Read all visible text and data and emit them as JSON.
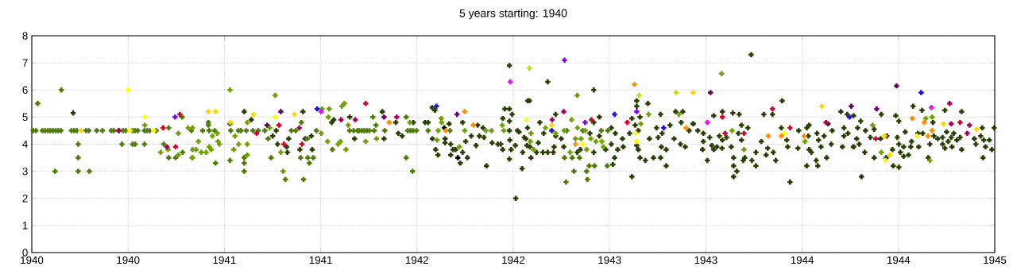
{
  "chart_data": {
    "type": "scatter",
    "title": "5 years starting: 1940",
    "xlim": [
      1940,
      1945
    ],
    "ylim": [
      0,
      8
    ],
    "xticks": [
      1940,
      {
        "value": 1940.5,
        "label": "1940"
      },
      1941,
      {
        "value": 1941.5,
        "label": "1941"
      },
      1942,
      {
        "value": 1942.5,
        "label": "1942"
      },
      1943,
      {
        "value": 1943.5,
        "label": "1943"
      },
      1944,
      {
        "value": 1944.5,
        "label": "1944"
      },
      1945
    ],
    "yticks": [
      0,
      1,
      2,
      3,
      4,
      5,
      6,
      7,
      8
    ],
    "grid": true,
    "marker": "cross",
    "series": [
      {
        "color": "#283c00",
        "x": [
          1940.215,
          1941.103,
          1941.14,
          1941.029,
          1941.408,
          1941.269,
          1941.251,
          1941.276,
          1941.334,
          1941.323,
          1941.327,
          1941.392,
          1941.452,
          1941.456,
          1941.419,
          1941.568,
          1941.557,
          1941.651,
          1941.676,
          1941.82,
          1941.829,
          1941.89,
          1941.903,
          1941.923,
          1941.981,
          1942.042,
          1942.058,
          1942.079,
          1942.093,
          1942.08,
          1942.097,
          1942.109,
          1942.146,
          1942.146,
          1942.167,
          1942.175,
          1942.175,
          1942.187,
          1942.2,
          1942.225,
          1942.237,
          1942.237,
          1942.262,
          1942.253,
          1942.282,
          1942.315,
          1942.324,
          1942.307,
          1942.348,
          1942.343,
          1942.361,
          1942.39,
          1942.42,
          1942.435,
          1942.445,
          1942.446,
          1942.456,
          1942.48,
          1942.48,
          1942.48,
          1942.48,
          1942.482,
          1942.48,
          1942.494,
          1942.489,
          1942.513,
          1942.522,
          1942.546,
          1942.549,
          1942.557,
          1942.571,
          1942.575,
          1942.53,
          1942.511,
          1942.679,
          1942.584,
          1942.574,
          1942.565,
          1942.586,
          1942.592,
          1942.621,
          1942.638,
          1942.63,
          1942.654,
          1942.658,
          1942.679,
          1942.708,
          1942.712,
          1942.72,
          1942.72,
          1942.749,
          1942.762,
          1942.832,
          1942.848,
          1942.898,
          1942.918,
          1942.918,
          1942.947,
          1942.947,
          1942.918,
          1942.98,
          1943.009,
          1943.009,
          1943.017,
          1943.03,
          1943.026,
          1943.042,
          1943.067,
          1943.071,
          1943.104,
          1943.116,
          1943.116,
          1943.133,
          1943.141,
          1943.141,
          1943.158,
          1943.149,
          1943.149,
          1943.141,
          1943.158,
          1943.186,
          1943.199,
          1943.207,
          1943.228,
          1943.244,
          1943.252,
          1943.265,
          1943.265,
          1943.269,
          1943.294,
          1943.273,
          1943.294,
          1943.314,
          1943.335,
          1943.343,
          1943.368,
          1943.372,
          1943.38,
          1943.393,
          1943.413,
          1943.434,
          1943.735,
          1943.896,
          1943.434,
          1943.458,
          1943.487,
          1943.487,
          1943.483,
          1943.508,
          1943.52,
          1943.541,
          1943.531,
          1943.541,
          1943.557,
          1943.57,
          1943.586,
          1943.586,
          1943.584,
          1943.607,
          1943.64,
          1943.632,
          1943.644,
          1943.644,
          1943.644,
          1943.661,
          1943.673,
          1943.669,
          1943.685,
          1943.685,
          1943.702,
          1943.718,
          1943.694,
          1943.739,
          1943.76,
          1943.76,
          1943.788,
          1943.801,
          1943.821,
          1943.846,
          1943.813,
          1943.863,
          1943.85,
          1943.892,
          1943.92,
          1943.925,
          1943.937,
          1943.978,
          1943.982,
          1944.024,
          1944.036,
          1944.024,
          1944.032,
          1944.036,
          1944.048,
          1944.077,
          1944.081,
          1944.073,
          1944.085,
          1944.098,
          1944.114,
          1944.127,
          1944.135,
          1944.151,
          1944.156,
          1944.201,
          1944.209,
          1944.217,
          1944.217,
          1944.234,
          1944.238,
          1944.267,
          1944.267,
          1944.283,
          1944.288,
          1944.304,
          1944.296,
          1944.308,
          1944.266,
          1944.329,
          1944.325,
          1944.354,
          1944.374,
          1944.374,
          1944.407,
          1944.411,
          1944.44,
          1944.436,
          1944.473,
          1944.469,
          1944.486,
          1944.502,
          1944.494,
          1944.502,
          1944.502,
          1944.51,
          1944.527,
          1944.527,
          1944.535,
          1944.552,
          1944.564,
          1944.568,
          1944.576,
          1944.605,
          1944.601,
          1944.622,
          1944.626,
          1944.655,
          1944.663,
          1944.679,
          1944.684,
          1944.704,
          1944.729,
          1944.729,
          1944.741,
          1944.741,
          1944.75,
          1944.758,
          1944.774,
          1944.778,
          1944.787,
          1944.803,
          1944.82,
          1944.828,
          1944.828,
          1944.894,
          1944.902,
          1944.927,
          1944.935,
          1944.939,
          1944.943,
          1944.952,
          1944.972,
          1944.985,
          1944.997
        ],
        "values": [
          5.15,
          5.2,
          4.9,
          4.75,
          5.2,
          4.5,
          4.3,
          4.0,
          4.2,
          3.9,
          3.7,
          3.8,
          4.3,
          3.8,
          4.2,
          4.9,
          4.8,
          5.0,
          4.2,
          5.2,
          4.2,
          4.8,
          4.4,
          4.3,
          4.8,
          4.8,
          4.8,
          5.35,
          5.25,
          4.2,
          3.8,
          3.6,
          4.2,
          4.05,
          4.75,
          4.0,
          3.6,
          3.8,
          3.8,
          3.3,
          4.8,
          3.7,
          3.5,
          4.1,
          4.3,
          4.7,
          4.3,
          3.95,
          4.25,
          4.6,
          3.2,
          4.05,
          4.0,
          4.0,
          3.8,
          4.95,
          5.3,
          6.9,
          5.3,
          4.85,
          4.5,
          4.15,
          3.45,
          5.1,
          3.8,
          2.0,
          4.5,
          3.1,
          3.7,
          4.25,
          3.95,
          5.6,
          4.45,
          3.95,
          6.3,
          5.6,
          4.6,
          4.2,
          3.9,
          3.5,
          3.7,
          4.8,
          4.05,
          3.7,
          4.4,
          3.7,
          3.7,
          3.9,
          5.1,
          4.3,
          4.2,
          3.9,
          3.7,
          3.8,
          4.4,
          6.0,
          4.8,
          5.0,
          4.3,
          3.7,
          3.8,
          4.6,
          4.0,
          3.25,
          4.4,
          3.5,
          3.8,
          4.2,
          3.9,
          4.4,
          2.8,
          4.95,
          4.7,
          5.6,
          5.4,
          5.0,
          4.5,
          3.8,
          3.95,
          3.5,
          3.4,
          5.5,
          4.2,
          3.5,
          4.6,
          4.25,
          5.1,
          3.5,
          3.9,
          3.2,
          4.4,
          3.8,
          4.7,
          4.2,
          5.2,
          4.0,
          4.8,
          5.2,
          3.9,
          4.5,
          4.75,
          7.3,
          5.6,
          4.75,
          4.5,
          4.4,
          4.1,
          3.8,
          3.4,
          4.25,
          5.05,
          3.95,
          3.8,
          3.9,
          4.3,
          5.2,
          4.15,
          3.85,
          4.25,
          5.15,
          3.9,
          3.5,
          3.2,
          2.8,
          3.0,
          5.1,
          4.4,
          4.7,
          4.15,
          3.5,
          4.6,
          3.4,
          3.4,
          3.2,
          3.7,
          4.1,
          5.1,
          3.85,
          5.1,
          3.6,
          3.4,
          3.7,
          4.6,
          4.15,
          3.9,
          2.6,
          3.85,
          4.5,
          4.6,
          4.7,
          3.2,
          4.3,
          3.8,
          3.7,
          4.4,
          3.2,
          3.4,
          4.15,
          3.9,
          4.3,
          3.5,
          4.75,
          4.0,
          4.5,
          5.2,
          3.9,
          4.6,
          4.3,
          5.1,
          4.4,
          5.05,
          3.9,
          4.2,
          4.6,
          4.85,
          4.0,
          2.8,
          3.9,
          4.5,
          3.7,
          4.25,
          4.55,
          3.5,
          4.2,
          5.1,
          4.3,
          3.5,
          3.2,
          3.8,
          5.05,
          4.85,
          4.25,
          3.15,
          4.0,
          3.7,
          3.9,
          3.55,
          4.45,
          3.6,
          3.9,
          4.1,
          5.4,
          3.9,
          4.4,
          5.25,
          4.4,
          3.5,
          4.0,
          4.8,
          4.3,
          4.2,
          4.25,
          4.0,
          5.25,
          3.85,
          4.45,
          4.1,
          4.25,
          3.9,
          4.4,
          4.15,
          4.25,
          5.2,
          3.8,
          4.2,
          4.0,
          4.3,
          4.6,
          3.5,
          4.15,
          3.9,
          4.15,
          3.8,
          4.6
        ]
      },
      {
        "color": "#4f7a00",
        "x": [
          1940.007,
          1940.021,
          1940.055,
          1940.069,
          1940.083,
          1940.096,
          1940.11,
          1940.124,
          1940.137,
          1940.151,
          1940.206,
          1940.22,
          1940.234,
          1940.282,
          1940.296,
          1940.337,
          1940.367,
          1940.413,
          1940.426,
          1940.454,
          1940.474,
          1940.488,
          1940.523,
          1940.536,
          1940.55,
          1940.585,
          1940.598,
          1940.612,
          1940.646,
          1940.031,
          1940.154,
          1940.121,
          1940.241,
          1940.241,
          1940.241,
          1940.299,
          1940.468,
          1940.523,
          1940.537,
          1940.585,
          1940.711,
          1940.711,
          1940.747,
          1940.781,
          1940.685,
          1940.829,
          1940.783,
          1940.887,
          1940.921,
          1940.949,
          1940.917,
          1940.917,
          1940.954,
          1941.029,
          1941.033,
          1941.073,
          1941.086,
          1941.114,
          1941.148,
          1941.176,
          1941.21,
          1941.103,
          1941.103,
          1941.103,
          1941.227,
          1941.243,
          1941.317,
          1941.348,
          1941.37,
          1941.396,
          1941.411,
          1941.433,
          1941.441,
          1941.462,
          1941.478,
          1941.561,
          1941.65,
          1941.671,
          1941.691,
          1941.4,
          1941.431,
          1941.771,
          1941.787,
          1941.698,
          1941.712,
          1941.725,
          1941.739,
          1941.753,
          1941.778,
          1941.833,
          1941.944,
          1941.944,
          1941.977,
          1941.952,
          1941.966,
          1941.98,
          1941.997,
          1942.058,
          1942.171,
          1942.774,
          1942.815,
          1942.885,
          1942.881,
          1942.922,
          1942.766,
          1942.844,
          1942.894,
          1942.988,
          1942.778,
          1942.861,
          1942.957,
          1942.991,
          1942.806
        ],
        "values": [
          4.5,
          4.5,
          4.5,
          4.5,
          4.5,
          4.5,
          4.5,
          4.5,
          4.5,
          4.5,
          4.5,
          4.5,
          4.5,
          4.5,
          4.5,
          4.5,
          4.5,
          4.5,
          4.5,
          4.5,
          4.5,
          4.5,
          4.5,
          4.5,
          4.5,
          4.5,
          4.5,
          4.5,
          4.5,
          5.5,
          6.0,
          3.0,
          4.0,
          3.5,
          3.0,
          3.0,
          4.0,
          4.0,
          4.0,
          4.0,
          4.6,
          3.5,
          3.5,
          5.0,
          4.0,
          4.5,
          3.7,
          4.5,
          4.5,
          4.5,
          4.8,
          4.7,
          3.3,
          3.4,
          4.5,
          4.5,
          4.5,
          4.5,
          4.5,
          4.5,
          4.5,
          3.5,
          3.3,
          3.0,
          4.2,
          3.5,
          2.7,
          4.5,
          4.5,
          3.5,
          2.7,
          3.5,
          3.3,
          3.5,
          4.5,
          3.8,
          4.5,
          4.5,
          4.5,
          4.8,
          4.2,
          5.0,
          4.7,
          4.5,
          4.5,
          4.5,
          4.5,
          4.5,
          4.5,
          4.5,
          5.0,
          3.5,
          3.0,
          4.5,
          4.5,
          4.5,
          4.5,
          4.5,
          4.5,
          2.6,
          3.0,
          2.7,
          3.0,
          3.2,
          3.5,
          3.5,
          3.2,
          3.2,
          4.5,
          4.5,
          4.5,
          4.5,
          3.5
        ]
      },
      {
        "color": "#6fa000",
        "x": [
          1940.587,
          1940.761,
          1940.669,
          1940.707,
          1940.812,
          1940.835,
          1940.835,
          1940.835,
          1940.761,
          1941.029,
          1941.264,
          1940.865,
          1940.938,
          1940.963,
          1940.967,
          1940.974,
          1940.921,
          1940.932,
          1940.88,
          1940.905,
          1940.853,
          1940.832,
          1941.049,
          1941.055,
          1941.074,
          1941.119,
          1941.119,
          1941.119,
          1941.236,
          1941.293,
          1941.305,
          1941.54,
          1941.544,
          1941.61,
          1941.623,
          1941.536,
          1941.59,
          1941.631,
          1941.643,
          1941.507,
          1941.503,
          1941.603,
          1941.734,
          1941.79,
          1941.963,
          1942.126,
          1942.128,
          1942.11,
          1942.104,
          1942.22,
          1942.248,
          1942.358,
          1942.387,
          1942.443,
          1942.451,
          1942.832,
          1942.803,
          1942.592,
          1942.588,
          1942.605,
          1942.667,
          1942.72,
          1942.764,
          1942.823,
          1942.852,
          1942.881,
          1942.833,
          1942.902,
          1942.929,
          1942.96,
          1942.968,
          1943.162,
          1943.203,
          1943.36,
          1942.795,
          1942.874,
          1943.582,
          1943.636,
          1943.698,
          1944.015,
          1944.366,
          1944.411,
          1944.642,
          1944.675,
          1944.663
        ],
        "values": [
          4.7,
          4.4,
          3.7,
          3.8,
          4.6,
          4.6,
          3.8,
          3.5,
          3.6,
          6.0,
          5.8,
          4.1,
          4.3,
          4.4,
          4.1,
          4.0,
          3.9,
          3.8,
          3.7,
          3.7,
          3.8,
          3.5,
          3.8,
          4.3,
          4.0,
          4.0,
          4.8,
          3.6,
          4.6,
          3.7,
          3.0,
          5.0,
          5.3,
          5.4,
          5.5,
          4.1,
          4.0,
          3.8,
          4.7,
          5.3,
          4.4,
          4.1,
          4.1,
          4.2,
          4.8,
          4.95,
          4.8,
          4.5,
          4.15,
          3.9,
          4.5,
          4.5,
          4.5,
          4.7,
          4.5,
          5.8,
          4.9,
          4.4,
          4.1,
          3.8,
          4.6,
          4.4,
          4.5,
          4.2,
          4.2,
          3.8,
          4.6,
          4.2,
          4.1,
          4.1,
          3.9,
          4.75,
          5.1,
          5.1,
          3.7,
          4.5,
          6.6,
          4.5,
          3.8,
          4.1,
          4.7,
          3.7,
          4.95,
          5.0,
          3.4
        ]
      },
      {
        "color": "#000000",
        "x": [
          1942.142,
          1942.212
        ],
        "values": [
          4.6,
          3.5
        ]
      },
      {
        "color": "#c8e000",
        "x": [
          1942.584,
          1943.153,
          1943.346
        ],
        "values": [
          6.8,
          5.8,
          5.9
        ]
      },
      {
        "color": "#ffff00",
        "x": [
          1940.5,
          1940.51,
          1940.587,
          1940.633,
          1941.264,
          1942.568,
          1942.861,
          1943.137,
          1943.141,
          1943.908,
          1944.597,
          1944.432
        ],
        "values": [
          6.0,
          4.5,
          5.0,
          4.5,
          5.0,
          4.9,
          4.0,
          4.4,
          4.1,
          4.4,
          4.3,
          3.4
        ]
      },
      {
        "color": "#ffd700",
        "x": [
          1940.255,
          1940.917,
          1940.954,
          1941.031,
          1941.152,
          1941.363,
          1942.7,
          1943.434,
          1944.102,
          1944.733,
          1944.906,
          1944.455,
          1944.428
        ],
        "values": [
          4.5,
          5.2,
          5.2,
          4.8,
          5.1,
          5.1,
          4.7,
          5.9,
          5.4,
          4.75,
          4.55,
          3.6,
          4.3
        ]
      },
      {
        "color": "#ff8c00",
        "x": [
          1941.856,
          1942.248,
          1942.293,
          1942.149,
          1942.823,
          1943.129,
          1943.397,
          1943.824,
          1943.892,
          1944.011,
          1944.572,
          1944.634,
          1944.653,
          1944.675
        ],
        "values": [
          4.8,
          5.2,
          4.7,
          4.5,
          4.0,
          6.2,
          4.6,
          4.3,
          4.3,
          4.3,
          4.95,
          4.8,
          4.3,
          4.5
        ]
      },
      {
        "color": "#d0002a",
        "x": [
          1940.769,
          1940.682,
          1940.747,
          1941.167,
          1941.284,
          1941.403,
          1941.309,
          1941.734,
          1942.906,
          1943.092,
          1943.846,
          1943.586,
          1943.937,
          1943.6,
          1943.698,
          1944.382,
          1944.82
        ],
        "values": [
          5.1,
          4.6,
          3.9,
          4.4,
          4.7,
          4.0,
          4.0,
          5.5,
          4.9,
          4.8,
          5.3,
          5.0,
          4.6,
          4.4,
          4.4,
          4.2,
          4.8
        ]
      },
      {
        "color": "#a0005a",
        "x": [
          1940.702,
          1940.451,
          1941.389,
          1941.606,
          1941.68,
          1941.895,
          1942.762,
          1942.702,
          1944.124,
          1944.774,
          1944.766,
          1944.857,
          1944.869
        ],
        "values": [
          3.9,
          4.5,
          4.6,
          4.9,
          4.9,
          5.0,
          5.2,
          4.9,
          4.8,
          4.75,
          5.5,
          4.4,
          4.7
        ]
      },
      {
        "color": "#600060",
        "x": [
          1941.293,
          1941.222,
          1941.829,
          1942.208,
          1943.524,
          1944.255,
          1944.49,
          1944.387
        ],
        "values": [
          5.2,
          4.7,
          5.0,
          5.1,
          5.9,
          5.4,
          6.15,
          5.3
        ]
      },
      {
        "color": "#8000ff",
        "x": [
          1940.744,
          1942.766,
          1942.873,
          1943.141
        ],
        "values": [
          5.0,
          7.1,
          4.8,
          5.2
        ]
      },
      {
        "color": "#2010c0",
        "x": [
          1941.482,
          1942.101,
          1942.7,
          1943.026,
          1943.281,
          1944.246,
          1944.618
        ],
        "values": [
          5.3,
          5.4,
          4.5,
          5.1,
          4.6,
          5.0,
          5.9
        ]
      },
      {
        "color": "#ff00ff",
        "x": [
          1941.503,
          1942.484,
          1943.508,
          1944.671
        ],
        "values": [
          5.2,
          6.3,
          4.8,
          5.35
        ]
      }
    ]
  }
}
